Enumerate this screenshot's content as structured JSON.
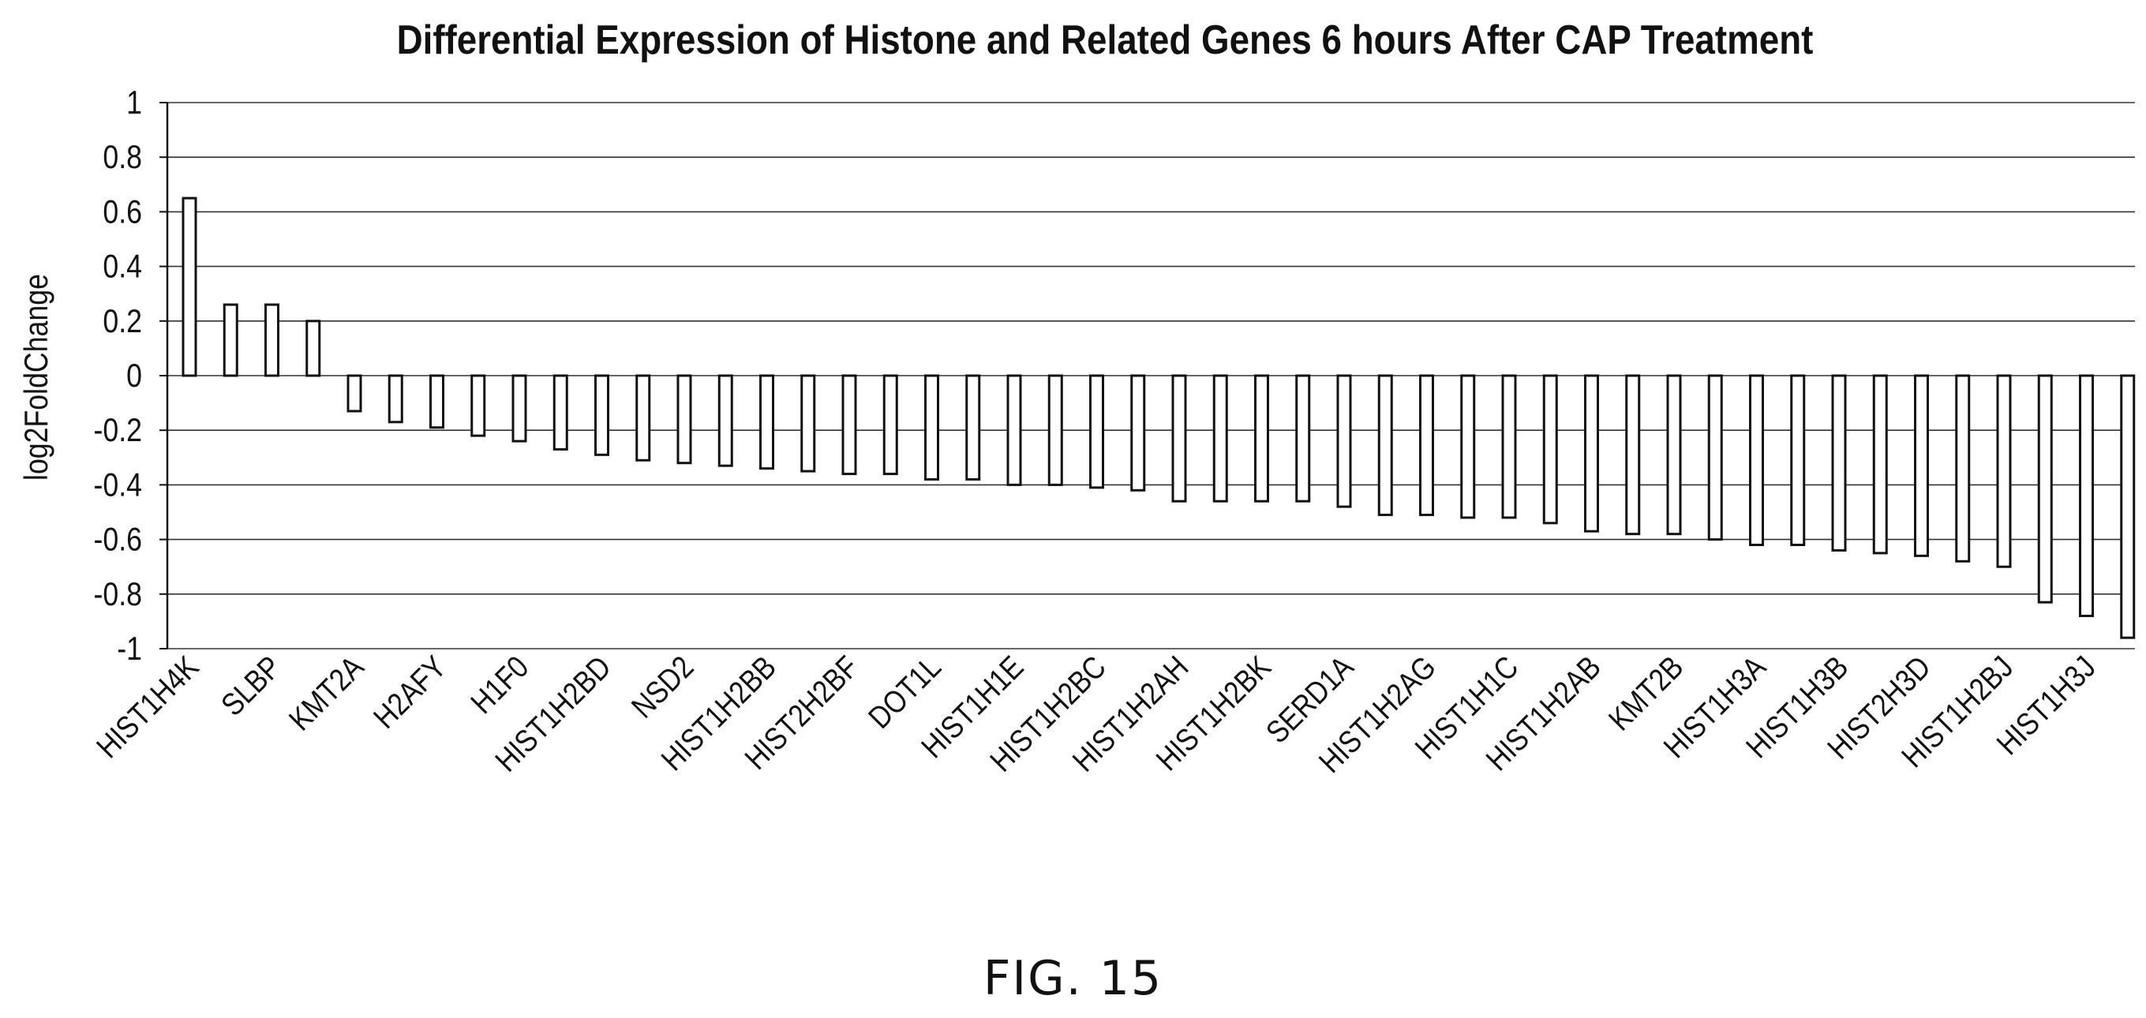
{
  "figure_label": "FIG. 15",
  "chart_data": {
    "type": "bar",
    "title": "Differential Expression of Histone and Related Genes 6 hours After CAP Treatment",
    "xlabel": "",
    "ylabel": "log2FoldChange",
    "ylim": [
      -1,
      1
    ],
    "yticks": [
      "1",
      "0.8",
      "0.6",
      "0.4",
      "0.2",
      "0",
      "-0.2",
      "-0.4",
      "-0.6",
      "-0.8",
      "-1"
    ],
    "ytick_values": [
      1,
      0.8,
      0.6,
      0.4,
      0.2,
      0,
      -0.2,
      -0.4,
      -0.6,
      -0.8,
      -1
    ],
    "grid": true,
    "categories": [
      "HIST1H4K",
      "",
      "SLBP",
      "",
      "KMT2A",
      "",
      "H2AFY",
      "",
      "H1F0",
      "",
      "HIST1H2BD",
      "",
      "NSD2",
      "",
      "HIST1H2BB",
      "",
      "HIST2H2BF",
      "",
      "DOT1L",
      "",
      "HIST1H1E",
      "",
      "HIST1H2BC",
      "",
      "HIST1H2AH",
      "",
      "HIST1H2BK",
      "",
      "SERD1A",
      "",
      "HIST1H2AG",
      "",
      "HIST1H1C",
      "",
      "HIST1H2AB",
      "",
      "KMT2B",
      "",
      "HIST1H3A",
      "",
      "HIST1H3B",
      "",
      "HIST2H3D",
      "",
      "HIST1H2BJ",
      "",
      "HIST1H3J",
      ""
    ],
    "values": [
      0.65,
      0.26,
      0.26,
      0.2,
      -0.13,
      -0.17,
      -0.19,
      -0.22,
      -0.24,
      -0.27,
      -0.29,
      -0.31,
      -0.32,
      -0.33,
      -0.34,
      -0.35,
      -0.36,
      -0.36,
      -0.38,
      -0.38,
      -0.4,
      -0.4,
      -0.41,
      -0.42,
      -0.46,
      -0.46,
      -0.46,
      -0.46,
      -0.48,
      -0.51,
      -0.51,
      -0.52,
      -0.52,
      -0.54,
      -0.57,
      -0.58,
      -0.58,
      -0.6,
      -0.62,
      -0.62,
      -0.64,
      -0.65,
      -0.66,
      -0.68,
      -0.7,
      -0.83,
      -0.88,
      -0.96
    ]
  }
}
